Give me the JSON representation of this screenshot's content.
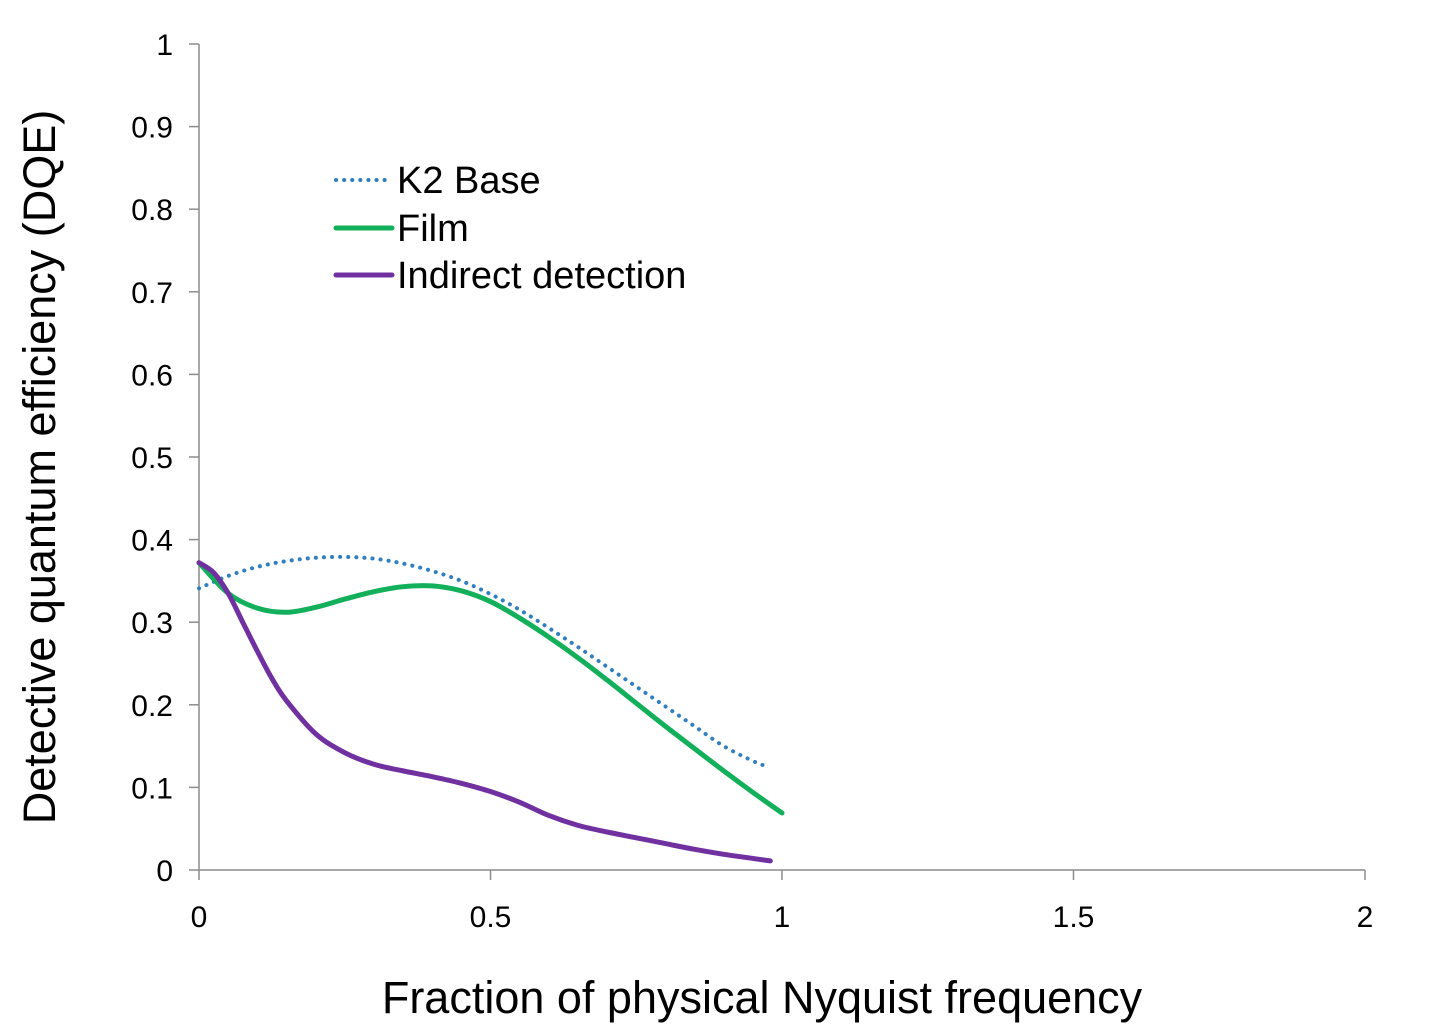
{
  "chart_data": {
    "type": "line",
    "title": "",
    "xlabel": "Fraction of physical Nyquist frequency",
    "ylabel": "Detective quantum efficiency (DQE)",
    "xlim": [
      0,
      2
    ],
    "ylim": [
      0,
      1
    ],
    "xticks": [
      0,
      0.5,
      1,
      1.5,
      2
    ],
    "xtick_labels": [
      "0",
      "0.5",
      "1",
      "1.5",
      "2"
    ],
    "yticks": [
      0,
      0.1,
      0.2,
      0.3,
      0.4,
      0.5,
      0.6,
      0.7,
      0.8,
      0.9,
      1
    ],
    "ytick_labels": [
      "0",
      "0.1",
      "0.2",
      "0.3",
      "0.4",
      "0.5",
      "0.6",
      "0.7",
      "0.8",
      "0.9",
      "1"
    ],
    "grid": false,
    "legend_position": "upper-left",
    "series": [
      {
        "name": "K2 Base",
        "color": "#2f7fc1",
        "style": "dotted",
        "x": [
          0,
          0.05,
          0.1,
          0.15,
          0.2,
          0.25,
          0.3,
          0.35,
          0.4,
          0.45,
          0.5,
          0.55,
          0.6,
          0.65,
          0.7,
          0.75,
          0.8,
          0.85,
          0.9,
          0.95,
          0.975
        ],
        "y": [
          0.341,
          0.356,
          0.367,
          0.374,
          0.378,
          0.379,
          0.377,
          0.371,
          0.362,
          0.35,
          0.334,
          0.315,
          0.293,
          0.27,
          0.246,
          0.222,
          0.198,
          0.174,
          0.15,
          0.132,
          0.125
        ]
      },
      {
        "name": "Film",
        "color": "#12b05a",
        "style": "solid",
        "x": [
          0,
          0.05,
          0.1,
          0.15,
          0.2,
          0.25,
          0.3,
          0.35,
          0.4,
          0.45,
          0.5,
          0.55,
          0.6,
          0.65,
          0.7,
          0.75,
          0.8,
          0.85,
          0.9,
          0.95,
          1.0
        ],
        "y": [
          0.372,
          0.335,
          0.317,
          0.312,
          0.318,
          0.328,
          0.337,
          0.343,
          0.344,
          0.338,
          0.325,
          0.305,
          0.282,
          0.257,
          0.23,
          0.202,
          0.174,
          0.147,
          0.12,
          0.094,
          0.069
        ]
      },
      {
        "name": "Indirect detection",
        "color": "#7030a0",
        "style": "solid",
        "x": [
          0,
          0.025,
          0.05,
          0.075,
          0.1,
          0.125,
          0.15,
          0.2,
          0.25,
          0.3,
          0.35,
          0.4,
          0.45,
          0.5,
          0.55,
          0.6,
          0.65,
          0.7,
          0.75,
          0.8,
          0.85,
          0.9,
          0.95,
          0.98
        ],
        "y": [
          0.372,
          0.36,
          0.335,
          0.3,
          0.265,
          0.232,
          0.205,
          0.165,
          0.142,
          0.128,
          0.12,
          0.113,
          0.105,
          0.095,
          0.082,
          0.066,
          0.054,
          0.046,
          0.039,
          0.032,
          0.025,
          0.019,
          0.014,
          0.011
        ]
      }
    ]
  }
}
